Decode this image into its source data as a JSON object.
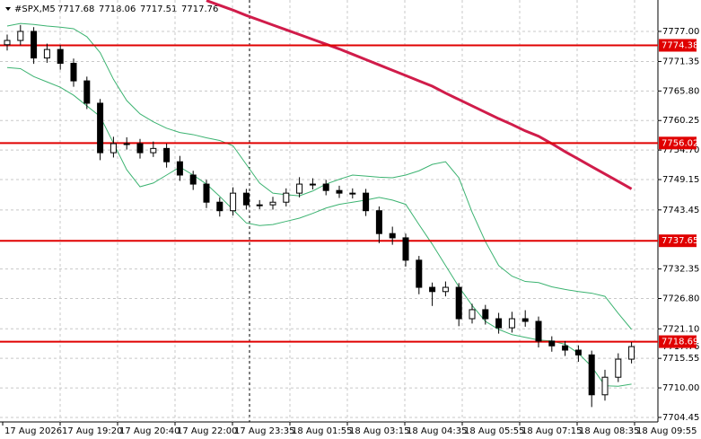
{
  "chart_data": {
    "type": "candlestick",
    "header": {
      "symbol": "#SPX,M5",
      "quote": [
        7717.68,
        7718.06,
        7717.51,
        7717.76
      ]
    },
    "categories": [
      "17 Aug 2026",
      "17 Aug 19:20",
      "17 Aug 20:40",
      "17 Aug 22:00",
      "17 Aug 23:35",
      "18 Aug 01:55",
      "18 Aug 03:15",
      "18 Aug 04:35",
      "18 Aug 05:55",
      "18 Aug 07:15",
      "18 Aug 08:35",
      "18 Aug 09:55"
    ],
    "open": [
      7774.5,
      7775.3,
      7777,
      7772,
      7773.6,
      7771,
      7767.7,
      7763.5,
      7754.2,
      7755.9,
      7755.9,
      7754.2,
      7755,
      7752.5,
      7750,
      7748.3,
      7744.9,
      7743.3,
      7746.6,
      7744.4,
      7744.4,
      7744.9,
      7746.6,
      7748.3,
      7748.3,
      7747.1,
      7746.6,
      7746.6,
      7743.3,
      7739,
      7738.2,
      7734,
      7728.9,
      7728.1,
      7728.9,
      7723,
      7724.7,
      7723,
      7721.3,
      7723,
      7722.5,
      7718.8,
      7717.9,
      7717.1,
      7716.2,
      7708.7,
      7712,
      7715.4
    ],
    "high": [
      7776.4,
      7778.2,
      7777.8,
      7774.7,
      7774.4,
      7771.9,
      7768.5,
      7764.3,
      7757.2,
      7757.1,
      7756.8,
      7756.3,
      7755.9,
      7753.6,
      7750.8,
      7749.1,
      7745.8,
      7747.7,
      7747.4,
      7745.3,
      7745.9,
      7747.5,
      7749.6,
      7749.4,
      7749.1,
      7748,
      7747.5,
      7747.4,
      7744.1,
      7740.3,
      7739,
      7734.8,
      7729.8,
      7730,
      7729.7,
      7725.8,
      7725.6,
      7724.1,
      7724.3,
      7724.6,
      7723.4,
      7719.7,
      7718.8,
      7718,
      7717,
      7713.4,
      7716.5,
      7718.6
    ],
    "low": [
      7773.4,
      7774.4,
      7770.9,
      7771.1,
      7769.8,
      7766.6,
      7762.4,
      7752.8,
      7753.3,
      7754.8,
      7753.1,
      7753.4,
      7751.4,
      7748.9,
      7747.2,
      7743.8,
      7742.2,
      7742.4,
      7743.5,
      7743.6,
      7743.5,
      7744.1,
      7745.8,
      7747.3,
      7746.2,
      7745.7,
      7745.6,
      7742.3,
      7737.2,
      7736.9,
      7732.8,
      7727.6,
      7725.4,
      7727.2,
      7721.6,
      7722.1,
      7721.9,
      7720.2,
      7720.4,
      7721.5,
      7717.6,
      7716.8,
      7716,
      7714.9,
      7706.4,
      7707.6,
      7711.1,
      7714.6
    ],
    "close": [
      7775.3,
      7777,
      7772,
      7773.6,
      7771,
      7767.7,
      7763.5,
      7754.2,
      7755.9,
      7755.9,
      7754.2,
      7755,
      7752.5,
      7750,
      7748.3,
      7744.9,
      7743.3,
      7746.6,
      7744.4,
      7744.4,
      7744.9,
      7746.6,
      7748.3,
      7748.3,
      7747.1,
      7746.6,
      7746.6,
      7743.3,
      7739,
      7738.2,
      7734,
      7728.9,
      7728.1,
      7728.9,
      7723,
      7724.7,
      7723,
      7721.3,
      7723,
      7722.5,
      7718.8,
      7717.9,
      7717.1,
      7716.2,
      7708.7,
      7712,
      7715.4,
      7717.76
    ],
    "upper_band": [
      7778,
      7778.5,
      7778.3,
      7778,
      7777.8,
      7777.5,
      7776,
      7773,
      7768,
      7764,
      7761.5,
      7760,
      7758.8,
      7758,
      7757.6,
      7757,
      7756.5,
      7755.5,
      7752,
      7748.5,
      7746.6,
      7746.3,
      7746.1,
      7747,
      7748.3,
      7749.2,
      7750,
      7749.8,
      7749.6,
      7749.5,
      7750,
      7750.8,
      7752,
      7752.5,
      7749.5,
      7743,
      7737.5,
      7733,
      7731,
      7730,
      7729.8,
      7729,
      7728.5,
      7728.1,
      7727.8,
      7727.2,
      7724,
      7721
    ],
    "lower_band": [
      7770.2,
      7770,
      7768.5,
      7767.5,
      7766.5,
      7765,
      7763,
      7761,
      7756,
      7751,
      7747.8,
      7748.5,
      7750,
      7751.5,
      7750,
      7748.3,
      7746,
      7743.5,
      7741,
      7740.5,
      7740.7,
      7741.3,
      7741.9,
      7742.8,
      7743.8,
      7744.5,
      7744.9,
      7745.3,
      7745.8,
      7745.3,
      7744.5,
      7740.7,
      7737,
      7733,
      7729,
      7725.5,
      7722.5,
      7721,
      7720,
      7719.5,
      7719,
      7718.8,
      7718.2,
      7716.5,
      7714,
      7710.4,
      7710.3,
      7710.7
    ],
    "moving_average": [
      null,
      null,
      null,
      null,
      null,
      null,
      null,
      null,
      null,
      null,
      null,
      null,
      null,
      null,
      null,
      7782.8,
      7781.9,
      7781.0,
      7780.0,
      7779.1,
      7778.2,
      7777.3,
      7776.4,
      7775.5,
      7774.6,
      7773.7,
      7772.7,
      7771.7,
      7770.7,
      7769.7,
      7768.7,
      7767.7,
      7766.7,
      7765.4,
      7764.2,
      7763.0,
      7761.8,
      7760.6,
      7759.5,
      7758.3,
      7757.3,
      7755.9,
      7754.4,
      7753.0,
      7751.6,
      7750.2,
      7748.8,
      7747.4
    ],
    "band_color": "#3cb371",
    "ma_color": "#d01c4a",
    "level_color": "#e00000",
    "levels": [
      7774.38,
      7756.02,
      7737.65,
      7718.69
    ],
    "ylim": [
      7703.6,
      7782.9
    ],
    "yticks": [
      {
        "value": 7777,
        "label": "7777.00"
      },
      7771.35,
      {
        "value": 7765.8,
        "label": "7765.80"
      },
      7760.25,
      {
        "value": 7754.7,
        "label": "7754.70"
      },
      7749.15,
      7743.45,
      7732.35,
      {
        "value": 7726.8,
        "label": "7726.80"
      },
      {
        "value": 7721.1,
        "label": "7721.10"
      },
      7715.55,
      {
        "value": 7710,
        "label": "7710.00"
      },
      7704.45
    ],
    "grid": true
  }
}
